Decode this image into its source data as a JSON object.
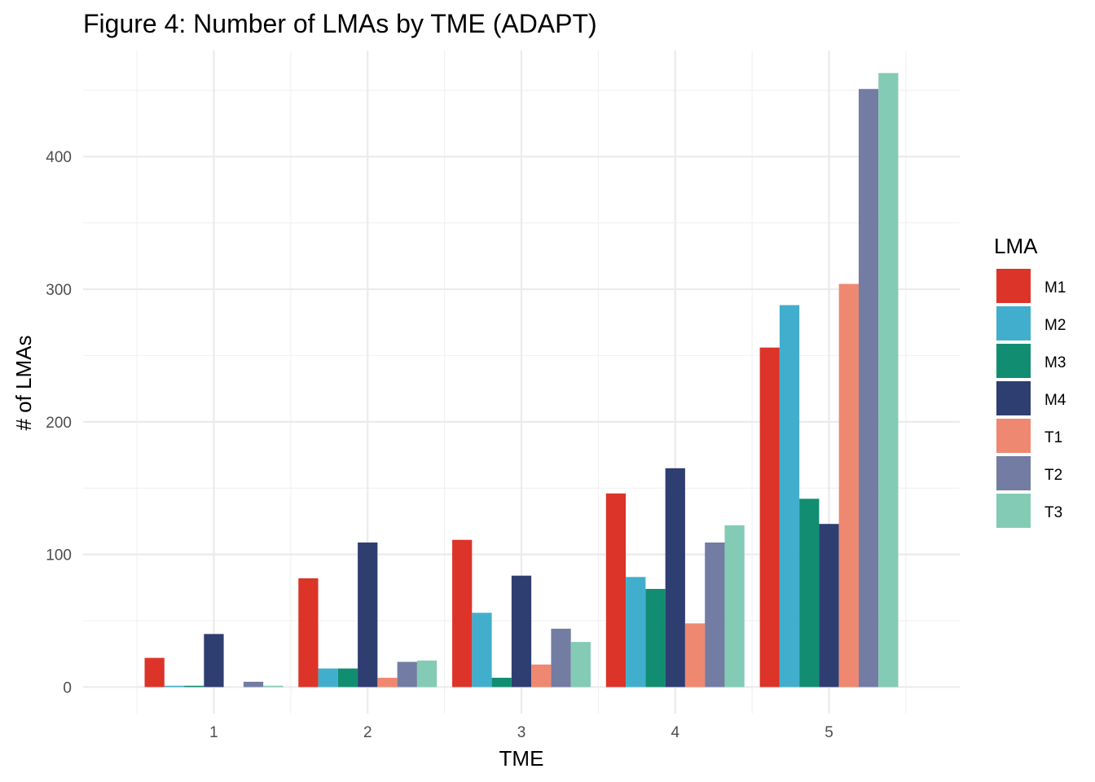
{
  "chart_data": {
    "type": "bar",
    "title": "Figure 4: Number of LMAs by TME (ADAPT)",
    "xlabel": "TME",
    "ylabel": "# of LMAs",
    "categories": [
      "1",
      "2",
      "3",
      "4",
      "5"
    ],
    "ylim": [
      -20,
      480
    ],
    "yticks": [
      0,
      100,
      200,
      300,
      400
    ],
    "legend": {
      "title": "LMA",
      "position": "right"
    },
    "grid": true,
    "series": [
      {
        "name": "M1",
        "color": "#dc3428",
        "values": [
          22,
          82,
          111,
          146,
          256
        ]
      },
      {
        "name": "M2",
        "color": "#42aecd",
        "values": [
          1,
          14,
          56,
          83,
          288
        ]
      },
      {
        "name": "M3",
        "color": "#118e72",
        "values": [
          1,
          14,
          7,
          74,
          142
        ]
      },
      {
        "name": "M4",
        "color": "#2f3e71",
        "values": [
          40,
          109,
          84,
          165,
          123
        ]
      },
      {
        "name": "T1",
        "color": "#ef8870",
        "values": [
          0,
          7,
          17,
          48,
          304
        ]
      },
      {
        "name": "T2",
        "color": "#737ca3",
        "values": [
          4,
          19,
          44,
          109,
          451
        ]
      },
      {
        "name": "T3",
        "color": "#83cbb4",
        "values": [
          1,
          20,
          34,
          122,
          463
        ]
      }
    ]
  }
}
